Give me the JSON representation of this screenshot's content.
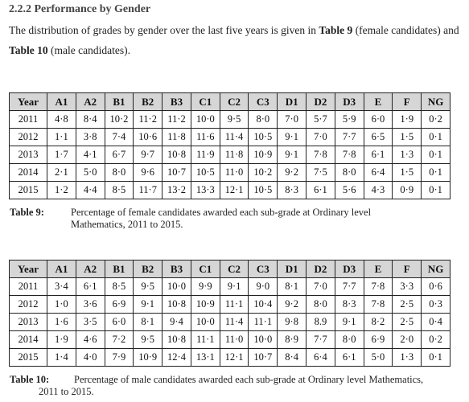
{
  "section": {
    "heading": "2.2.2 Performance by Gender",
    "intro_before": "The distribution of grades by gender over the last five years is given in ",
    "intro_ref1": "Table 9",
    "intro_mid": " (female candidates) and ",
    "intro_ref2": "Table 10",
    "intro_after": " (male candidates)."
  },
  "columns": [
    "Year",
    "A1",
    "A2",
    "B1",
    "B2",
    "B3",
    "C1",
    "C2",
    "C3",
    "D1",
    "D2",
    "D3",
    "E",
    "F",
    "NG"
  ],
  "table9": {
    "rows": [
      [
        "2011",
        "4·8",
        "8·4",
        "10·2",
        "11·2",
        "11·2",
        "10·0",
        "9·5",
        "8·0",
        "7·0",
        "5·7",
        "5·9",
        "6·0",
        "1·9",
        "0·2"
      ],
      [
        "2012",
        "1·1",
        "3·8",
        "7·4",
        "10·6",
        "11·8",
        "11·6",
        "11·4",
        "10·5",
        "9·1",
        "7·0",
        "7·7",
        "6·5",
        "1·5",
        "0·1"
      ],
      [
        "2013",
        "1·7",
        "4·1",
        "6·7",
        "9·7",
        "10·8",
        "11·9",
        "11·8",
        "10·9",
        "9·1",
        "7·8",
        "7·8",
        "6·1",
        "1·3",
        "0·1"
      ],
      [
        "2014",
        "2·1",
        "5·0",
        "8·0",
        "9·6",
        "10·7",
        "10·5",
        "11·0",
        "10·2",
        "9·2",
        "7·5",
        "8·0",
        "6·4",
        "1·5",
        "0·1"
      ],
      [
        "2015",
        "1·2",
        "4·4",
        "8·5",
        "11·7",
        "13·2",
        "13·3",
        "12·1",
        "10·5",
        "8·3",
        "6·1",
        "5·6",
        "4·3",
        "0·9",
        "0·1"
      ]
    ],
    "caption_label": "Table 9:",
    "caption_line1": "Percentage of female candidates awarded each sub-grade at Ordinary level",
    "caption_line2": "Mathematics, 2011 to 2015."
  },
  "table10": {
    "rows": [
      [
        "2011",
        "3·4",
        "6·1",
        "8·5",
        "9·5",
        "10·0",
        "9·9",
        "9·1",
        "9·0",
        "8·1",
        "7·0",
        "7·7",
        "7·8",
        "3·3",
        "0·6"
      ],
      [
        "2012",
        "1·0",
        "3·6",
        "6·9",
        "9·1",
        "10·8",
        "10·9",
        "11·1",
        "10·4",
        "9·2",
        "8·0",
        "8·3",
        "7·8",
        "2·5",
        "0·3"
      ],
      [
        "2013",
        "1·6",
        "3·5",
        "6·0",
        "8·1",
        "9·4",
        "10·0",
        "11·4",
        "11·1",
        "9·8",
        "8.9",
        "9·1",
        "8·2",
        "2·5",
        "0·4"
      ],
      [
        "2014",
        "1·9",
        "4·6",
        "7·2",
        "9·5",
        "10·8",
        "11·1",
        "11·0",
        "10·0",
        "8·9",
        "7·7",
        "8·0",
        "6·9",
        "2·0",
        "0·2"
      ],
      [
        "2015",
        "1·4",
        "4·0",
        "7·9",
        "10·9",
        "12·4",
        "13·1",
        "12·1",
        "10·7",
        "8·4",
        "6·4",
        "6·1",
        "5·0",
        "1·3",
        "0·1"
      ]
    ],
    "caption_label": "Table 10:",
    "caption_line1": "Percentage of male candidates awarded each sub-grade at Ordinary level Mathematics,",
    "caption_line2": "2011 to 2015."
  }
}
